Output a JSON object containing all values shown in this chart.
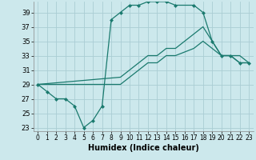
{
  "xlabel": "Humidex (Indice chaleur)",
  "bg_color": "#cce8ec",
  "grid_color": "#aacdd4",
  "line_color": "#1a7a6e",
  "xlim": [
    -0.5,
    23.5
  ],
  "ylim": [
    22.5,
    40.5
  ],
  "yticks": [
    23,
    25,
    27,
    29,
    31,
    33,
    35,
    37,
    39
  ],
  "xticks": [
    0,
    1,
    2,
    3,
    4,
    5,
    6,
    7,
    8,
    9,
    10,
    11,
    12,
    13,
    14,
    15,
    16,
    17,
    18,
    19,
    20,
    21,
    22,
    23
  ],
  "line1_x": [
    0,
    1,
    2,
    3,
    4,
    5,
    6,
    7,
    8,
    9,
    10,
    11,
    12,
    13,
    14,
    15,
    17,
    18,
    19,
    20,
    21,
    22,
    23
  ],
  "line1_y": [
    29,
    28,
    27,
    27,
    26,
    23,
    24,
    26,
    38,
    39,
    40,
    40,
    40.5,
    40.5,
    40.5,
    40,
    40,
    39,
    35,
    33,
    33,
    32,
    32
  ],
  "line2_x": [
    0,
    9,
    10,
    11,
    12,
    13,
    14,
    15,
    17,
    18,
    19,
    20,
    21,
    22,
    23
  ],
  "line2_y": [
    29,
    30,
    31,
    32,
    33,
    33,
    34,
    34,
    36,
    37,
    35,
    33,
    33,
    33,
    32
  ],
  "line3_x": [
    0,
    9,
    10,
    11,
    12,
    13,
    14,
    15,
    17,
    18,
    19,
    20,
    21,
    22,
    23
  ],
  "line3_y": [
    29,
    29,
    30,
    31,
    32,
    32,
    33,
    33,
    34,
    35,
    34,
    33,
    33,
    32,
    32
  ]
}
